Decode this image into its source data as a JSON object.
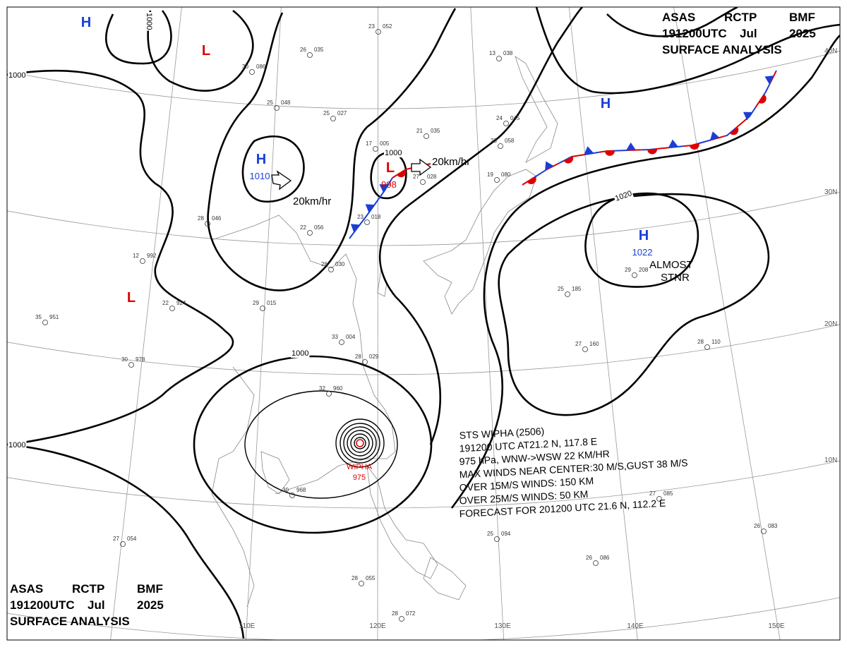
{
  "header": {
    "agency": [
      "ASAS",
      "RCTP",
      "BMF"
    ],
    "time": [
      "191200UTC",
      "Jul",
      "2025"
    ],
    "product": "SURFACE ANALYSIS"
  },
  "longitudes": [
    "110E",
    "120E",
    "130E",
    "140E",
    "150E"
  ],
  "latitudes": [
    "40N",
    "30N",
    "20N",
    "10N"
  ],
  "centers": [
    {
      "type": "H"
    },
    {
      "type": "L"
    },
    {
      "type": "H",
      "pressure": "1010"
    },
    {
      "type": "L",
      "pressure": "998"
    },
    {
      "type": "H"
    },
    {
      "type": "H",
      "pressure": "1022"
    },
    {
      "type": "L"
    }
  ],
  "isobar_labels": [
    "1000",
    "1000",
    "1000",
    "1000",
    "1000",
    "1020"
  ],
  "motion_labels": [
    "20km/hr",
    "20km/hr"
  ],
  "stationary_label": [
    "ALMOST",
    "STNR"
  ],
  "typhoon": {
    "name": "WIPHA",
    "pressure": "975",
    "info": [
      "STS WIPHA (2506)",
      "191200 UTC AT21.2 N, 117.8 E",
      "975 hPa, WNW->WSW 22 KM/HR",
      "MAX WINDS NEAR CENTER:30 M/S,GUST 38 M/S",
      "OVER 15M/S WINDS: 150 KM",
      "OVER 25M/S WINDS: 50 KM",
      "FORECAST FOR 201200 UTC 21.6 N, 112.2 E"
    ]
  },
  "stations": [
    {
      "t": "23",
      "p": "052"
    },
    {
      "t": "26",
      "p": "035"
    },
    {
      "t": "30",
      "p": "086"
    },
    {
      "t": "25",
      "p": "048"
    },
    {
      "t": "25",
      "p": "027"
    },
    {
      "t": "21",
      "p": "035"
    },
    {
      "t": "17",
      "p": "005"
    },
    {
      "t": "23",
      "p": "058"
    },
    {
      "t": "24",
      "p": "045"
    },
    {
      "t": "13",
      "p": "038"
    },
    {
      "t": "19",
      "p": "080"
    },
    {
      "t": "27",
      "p": "028"
    },
    {
      "t": "23",
      "p": "018"
    },
    {
      "t": "22",
      "p": "056"
    },
    {
      "t": "28",
      "p": "046"
    },
    {
      "t": "26",
      "p": "030"
    },
    {
      "t": "29",
      "p": "015"
    },
    {
      "t": "33",
      "p": "004"
    },
    {
      "t": "28",
      "p": "029"
    },
    {
      "t": "32",
      "p": "960"
    },
    {
      "t": "30",
      "p": "968"
    },
    {
      "t": "27",
      "p": "054"
    },
    {
      "t": "25",
      "p": "094"
    },
    {
      "t": "26",
      "p": "083"
    },
    {
      "t": "26",
      "p": "086"
    },
    {
      "t": "27",
      "p": "085"
    },
    {
      "t": "27",
      "p": "160"
    },
    {
      "t": "28",
      "p": "110"
    },
    {
      "t": "29",
      "p": "208"
    },
    {
      "t": "25",
      "p": "185"
    },
    {
      "t": "30",
      "p": "978"
    },
    {
      "t": "35",
      "p": "951"
    },
    {
      "t": "22",
      "p": "924"
    },
    {
      "t": "12",
      "p": "992"
    },
    {
      "t": "28",
      "p": "055"
    },
    {
      "t": "28",
      "p": "072"
    }
  ]
}
